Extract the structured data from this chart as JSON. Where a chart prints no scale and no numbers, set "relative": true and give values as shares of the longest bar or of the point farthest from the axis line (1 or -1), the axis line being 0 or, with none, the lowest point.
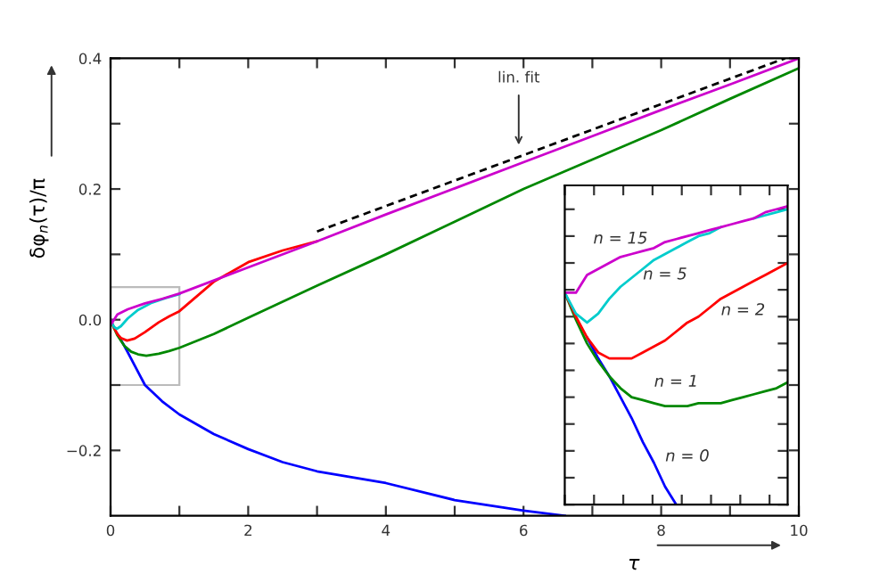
{
  "chart_data": [
    {
      "type": "line",
      "xlabel": "τ",
      "ylabel": "δφ$_{n}$(τ)/π",
      "xlim": [
        0,
        10
      ],
      "ylim": [
        -0.3,
        0.4
      ],
      "xticks": [
        0,
        {
          "value": 1,
          "label": null
        },
        2,
        {
          "value": 3,
          "label": null
        },
        4,
        {
          "value": 5,
          "label": null
        },
        6,
        {
          "value": 7,
          "label": null
        },
        8,
        {
          "value": 9,
          "label": null
        },
        10
      ],
      "yticks": [
        {
          "value": -0.2,
          "label": "−0.2"
        },
        {
          "value": -0.1,
          "label": null
        },
        {
          "value": 0.0,
          "label": "0.0"
        },
        {
          "value": 0.1,
          "label": null
        },
        0.2,
        {
          "value": 0.3,
          "label": null
        },
        0.4
      ],
      "grid": false,
      "legend": false,
      "annotations": [
        {
          "text": "lin. fit",
          "x": 5.93,
          "y": 0.26
        }
      ],
      "series": [
        {
          "color": "#0000ff",
          "x": [
            0.1,
            0.2,
            0.3,
            0.4,
            0.5,
            0.75,
            1,
            1.5,
            2,
            2.5,
            3,
            4,
            5,
            6,
            6.6
          ],
          "values": [
            -0.022,
            -0.04,
            -0.06,
            -0.08,
            -0.1,
            -0.125,
            -0.145,
            -0.175,
            -0.198,
            -0.218,
            -0.232,
            -0.25,
            -0.276,
            -0.292,
            -0.3
          ]
        },
        {
          "color": "#008800",
          "x": [
            0,
            0.05,
            0.1,
            0.2,
            0.3,
            0.4,
            0.52,
            0.7,
            0.85,
            1,
            1.5,
            2,
            3,
            4,
            5,
            6,
            7,
            8,
            9,
            10
          ],
          "values": [
            0,
            -0.013,
            -0.024,
            -0.04,
            -0.049,
            -0.053,
            -0.055,
            -0.052,
            -0.048,
            -0.043,
            -0.022,
            0.003,
            0.052,
            0.1,
            0.15,
            0.2,
            0.245,
            0.29,
            0.338,
            0.385
          ]
        },
        {
          "color": "#ff0000",
          "x": [
            0,
            0.05,
            0.1,
            0.15,
            0.24,
            0.35,
            0.5,
            0.7,
            0.85,
            1,
            1.5,
            2,
            2.5,
            3
          ],
          "values": [
            0,
            -0.012,
            -0.022,
            -0.028,
            -0.032,
            -0.029,
            -0.019,
            -0.004,
            0.005,
            0.013,
            0.058,
            0.088,
            0.106,
            0.12
          ]
        },
        {
          "color": "#00cccc",
          "x": [
            0,
            0.05,
            0.09,
            0.15,
            0.25,
            0.4,
            0.6,
            0.8,
            1
          ],
          "values": [
            0,
            -0.011,
            -0.014,
            -0.01,
            0.002,
            0.015,
            0.026,
            0.033,
            0.039
          ]
        },
        {
          "color": "#cc00cc",
          "x": [
            0,
            0.015,
            0.05,
            0.1,
            0.25,
            0.5,
            0.75,
            1,
            2,
            3,
            4,
            5,
            6,
            7,
            8,
            9,
            10
          ],
          "values": [
            0,
            -0.006,
            0.0,
            0.008,
            0.016,
            0.025,
            0.032,
            0.04,
            0.08,
            0.12,
            0.161,
            0.201,
            0.241,
            0.281,
            0.321,
            0.36,
            0.4
          ]
        },
        {
          "color": "#000000",
          "line_style": "dashed",
          "x": [
            3,
            9.8
          ],
          "values": [
            0.135,
            0.4
          ]
        }
      ]
    },
    {
      "type": "line",
      "relative": true,
      "grid": false,
      "legend": false,
      "categories": [
        null,
        null,
        null,
        null,
        null,
        null,
        null,
        null,
        null,
        null,
        null,
        null,
        null,
        null,
        null,
        null,
        null,
        null,
        null,
        null,
        null
      ],
      "series": [
        {
          "name": "n = 0",
          "color": "#0000ff",
          "values": [
            null,
            null,
            0.56,
            0.49,
            0.43,
            0.36,
            0.29,
            0.21,
            0.14,
            0.06,
            0.0,
            null,
            null,
            null,
            null,
            null,
            null,
            null,
            null,
            null,
            null
          ]
        },
        {
          "name": "n = 1",
          "color": "#008800",
          "values": [
            0.71,
            0.62,
            0.54,
            0.48,
            0.43,
            0.39,
            0.36,
            0.35,
            0.34,
            0.33,
            0.33,
            0.33,
            0.34,
            0.34,
            0.34,
            0.35,
            0.36,
            0.37,
            0.38,
            0.39,
            0.41
          ]
        },
        {
          "name": "n = 2",
          "color": "#ff0000",
          "values": [
            0.71,
            0.63,
            0.56,
            0.51,
            0.49,
            0.49,
            0.49,
            0.51,
            0.53,
            0.55,
            0.58,
            0.61,
            0.63,
            0.66,
            0.69,
            0.71,
            0.73,
            0.75,
            0.77,
            0.79,
            0.81
          ]
        },
        {
          "name": "n = 5",
          "color": "#00cccc",
          "values": [
            0.71,
            0.64,
            0.61,
            0.64,
            0.69,
            0.73,
            0.76,
            0.79,
            0.82,
            0.84,
            0.86,
            0.88,
            0.9,
            0.91,
            0.93,
            null,
            null,
            0.96,
            0.97,
            0.98,
            0.99
          ]
        },
        {
          "name": "n = 15",
          "color": "#cc00cc",
          "values": [
            0.71,
            0.71,
            0.77,
            0.79,
            0.81,
            0.83,
            0.84,
            0.85,
            0.86,
            0.88,
            0.89,
            0.9,
            0.91,
            0.92,
            0.93,
            0.94,
            0.95,
            0.96,
            0.98,
            0.99,
            1.0
          ]
        }
      ]
    }
  ]
}
